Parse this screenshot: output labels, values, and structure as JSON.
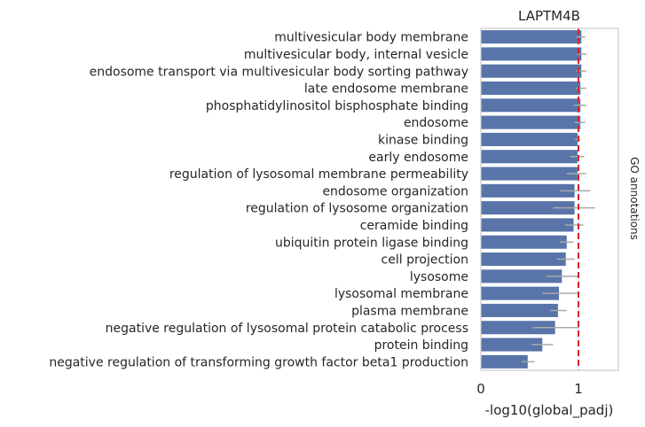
{
  "chart_data": {
    "type": "bar",
    "orientation": "horizontal",
    "title": "LAPTM4B",
    "xlabel": "-log10(global_padj)",
    "ylabel": "",
    "right_label": "GO annotations",
    "xlim": [
      0,
      1.4
    ],
    "xticks": [
      0,
      1
    ],
    "xtick_labels": [
      "0",
      "1"
    ],
    "reference_line": 1.0,
    "bar_color": "#5874a9",
    "error_color": "#a9a9a9",
    "ref_color": "#d62728",
    "categories": [
      "multivesicular body membrane",
      "multivesicular body, internal vesicle",
      "endosome transport via multivesicular body sorting pathway",
      "late endosome membrane",
      "phosphatidylinositol bisphosphate binding",
      "endosome",
      "kinase binding",
      "early endosome",
      "regulation of lysosomal membrane permeability",
      "endosome organization",
      "regulation of lysosome organization",
      "ceramide binding",
      "ubiquitin protein ligase binding",
      "cell projection",
      "lysosome",
      "lysosomal membrane",
      "plasma membrane",
      "negative regulation of lysosomal protein catabolic process",
      "protein binding",
      "negative regulation of transforming growth factor beta1 production"
    ],
    "values": [
      1.03,
      1.03,
      1.03,
      1.02,
      1.02,
      1.02,
      0.99,
      0.99,
      0.99,
      0.96,
      0.96,
      0.95,
      0.88,
      0.87,
      0.83,
      0.8,
      0.79,
      0.76,
      0.63,
      0.48
    ],
    "err_low": [
      0.98,
      0.98,
      0.98,
      0.97,
      0.95,
      0.96,
      0.96,
      0.91,
      0.88,
      0.81,
      0.74,
      0.86,
      0.81,
      0.78,
      0.67,
      0.63,
      0.71,
      0.53,
      0.52,
      0.42
    ],
    "err_high": [
      1.07,
      1.08,
      1.08,
      1.08,
      1.08,
      1.07,
      1.02,
      1.06,
      1.08,
      1.12,
      1.17,
      1.05,
      0.95,
      0.96,
      1.0,
      0.99,
      0.88,
      1.01,
      0.74,
      0.55
    ]
  }
}
